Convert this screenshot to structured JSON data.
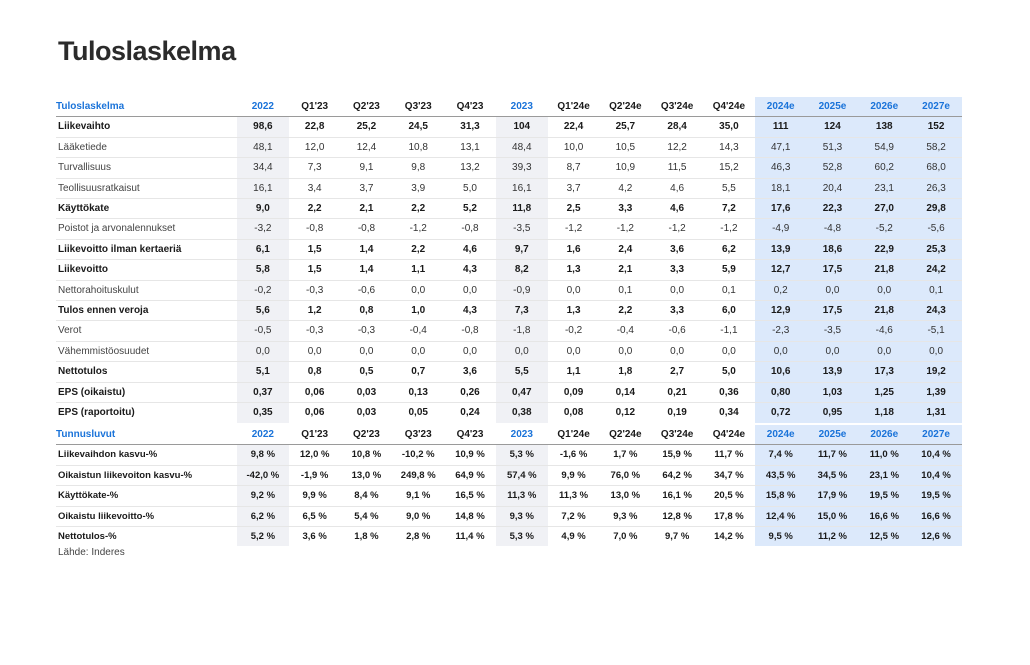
{
  "title": "Tuloslaskelma",
  "source": "Lähde: Inderes",
  "income": {
    "header": [
      "Tuloslaskelma",
      "2022",
      "Q1'23",
      "Q2'23",
      "Q3'23",
      "Q4'23",
      "2023",
      "Q1'24e",
      "Q2'24e",
      "Q3'24e",
      "Q4'24e",
      "2024e",
      "2025e",
      "2026e",
      "2027e"
    ],
    "rows": [
      {
        "bold": true,
        "cells": [
          "Liikevaihto",
          "98,6",
          "22,8",
          "25,2",
          "24,5",
          "31,3",
          "104",
          "22,4",
          "25,7",
          "28,4",
          "35,0",
          "111",
          "124",
          "138",
          "152"
        ]
      },
      {
        "bold": false,
        "cells": [
          "Lääketiede",
          "48,1",
          "12,0",
          "12,4",
          "10,8",
          "13,1",
          "48,4",
          "10,0",
          "10,5",
          "12,2",
          "14,3",
          "47,1",
          "51,3",
          "54,9",
          "58,2"
        ]
      },
      {
        "bold": false,
        "cells": [
          "Turvallisuus",
          "34,4",
          "7,3",
          "9,1",
          "9,8",
          "13,2",
          "39,3",
          "8,7",
          "10,9",
          "11,5",
          "15,2",
          "46,3",
          "52,8",
          "60,2",
          "68,0"
        ]
      },
      {
        "bold": false,
        "cells": [
          "Teollisuusratkaisut",
          "16,1",
          "3,4",
          "3,7",
          "3,9",
          "5,0",
          "16,1",
          "3,7",
          "4,2",
          "4,6",
          "5,5",
          "18,1",
          "20,4",
          "23,1",
          "26,3"
        ]
      },
      {
        "bold": true,
        "cells": [
          "Käyttökate",
          "9,0",
          "2,2",
          "2,1",
          "2,2",
          "5,2",
          "11,8",
          "2,5",
          "3,3",
          "4,6",
          "7,2",
          "17,6",
          "22,3",
          "27,0",
          "29,8"
        ]
      },
      {
        "bold": false,
        "cells": [
          "Poistot ja arvonalennukset",
          "-3,2",
          "-0,8",
          "-0,8",
          "-1,2",
          "-0,8",
          "-3,5",
          "-1,2",
          "-1,2",
          "-1,2",
          "-1,2",
          "-4,9",
          "-4,8",
          "-5,2",
          "-5,6"
        ]
      },
      {
        "bold": true,
        "cells": [
          "Liikevoitto ilman kertaeriä",
          "6,1",
          "1,5",
          "1,4",
          "2,2",
          "4,6",
          "9,7",
          "1,6",
          "2,4",
          "3,6",
          "6,2",
          "13,9",
          "18,6",
          "22,9",
          "25,3"
        ]
      },
      {
        "bold": true,
        "cells": [
          "Liikevoitto",
          "5,8",
          "1,5",
          "1,4",
          "1,1",
          "4,3",
          "8,2",
          "1,3",
          "2,1",
          "3,3",
          "5,9",
          "12,7",
          "17,5",
          "21,8",
          "24,2"
        ]
      },
      {
        "bold": false,
        "cells": [
          "Nettorahoituskulut",
          "-0,2",
          "-0,3",
          "-0,6",
          "0,0",
          "0,0",
          "-0,9",
          "0,0",
          "0,1",
          "0,0",
          "0,1",
          "0,2",
          "0,0",
          "0,0",
          "0,1"
        ]
      },
      {
        "bold": true,
        "cells": [
          "Tulos ennen veroja",
          "5,6",
          "1,2",
          "0,8",
          "1,0",
          "4,3",
          "7,3",
          "1,3",
          "2,2",
          "3,3",
          "6,0",
          "12,9",
          "17,5",
          "21,8",
          "24,3"
        ]
      },
      {
        "bold": false,
        "cells": [
          "Verot",
          "-0,5",
          "-0,3",
          "-0,3",
          "-0,4",
          "-0,8",
          "-1,8",
          "-0,2",
          "-0,4",
          "-0,6",
          "-1,1",
          "-2,3",
          "-3,5",
          "-4,6",
          "-5,1"
        ]
      },
      {
        "bold": false,
        "cells": [
          "Vähemmistöosuudet",
          "0,0",
          "0,0",
          "0,0",
          "0,0",
          "0,0",
          "0,0",
          "0,0",
          "0,0",
          "0,0",
          "0,0",
          "0,0",
          "0,0",
          "0,0",
          "0,0"
        ]
      },
      {
        "bold": true,
        "cells": [
          "Nettotulos",
          "5,1",
          "0,8",
          "0,5",
          "0,7",
          "3,6",
          "5,5",
          "1,1",
          "1,8",
          "2,7",
          "5,0",
          "10,6",
          "13,9",
          "17,3",
          "19,2"
        ]
      },
      {
        "bold": true,
        "cells": [
          "EPS (oikaistu)",
          "0,37",
          "0,06",
          "0,03",
          "0,13",
          "0,26",
          "0,47",
          "0,09",
          "0,14",
          "0,21",
          "0,36",
          "0,80",
          "1,03",
          "1,25",
          "1,39"
        ]
      },
      {
        "bold": true,
        "cells": [
          "EPS (raportoitu)",
          "0,35",
          "0,06",
          "0,03",
          "0,05",
          "0,24",
          "0,38",
          "0,08",
          "0,12",
          "0,19",
          "0,34",
          "0,72",
          "0,95",
          "1,18",
          "1,31"
        ]
      }
    ]
  },
  "ratios": {
    "header": [
      "Tunnusluvut",
      "2022",
      "Q1'23",
      "Q2'23",
      "Q3'23",
      "Q4'23",
      "2023",
      "Q1'24e",
      "Q2'24e",
      "Q3'24e",
      "Q4'24e",
      "2024e",
      "2025e",
      "2026e",
      "2027e"
    ],
    "rows": [
      {
        "cells": [
          "Liikevaihdon kasvu-%",
          "9,8 %",
          "12,0 %",
          "10,8 %",
          "-10,2 %",
          "10,9 %",
          "5,3 %",
          "-1,6 %",
          "1,7 %",
          "15,9 %",
          "11,7 %",
          "7,4 %",
          "11,7 %",
          "11,0 %",
          "10,4 %"
        ]
      },
      {
        "cells": [
          "Oikaistun liikevoiton kasvu-%",
          "-42,0 %",
          "-1,9 %",
          "13,0 %",
          "249,8 %",
          "64,9 %",
          "57,4 %",
          "9,9 %",
          "76,0 %",
          "64,2 %",
          "34,7 %",
          "43,5 %",
          "34,5 %",
          "23,1 %",
          "10,4 %"
        ]
      },
      {
        "cells": [
          "Käyttökate-%",
          "9,2 %",
          "9,9 %",
          "8,4 %",
          "9,1 %",
          "16,5 %",
          "11,3 %",
          "11,3 %",
          "13,0 %",
          "16,1 %",
          "20,5 %",
          "15,8 %",
          "17,9 %",
          "19,5 %",
          "19,5 %"
        ]
      },
      {
        "cells": [
          "Oikaistu liikevoitto-%",
          "6,2 %",
          "6,5 %",
          "5,4 %",
          "9,0 %",
          "14,8 %",
          "9,3 %",
          "7,2 %",
          "9,3 %",
          "12,8 %",
          "17,8 %",
          "12,4 %",
          "15,0 %",
          "16,6 %",
          "16,6 %"
        ]
      },
      {
        "cells": [
          "Nettotulos-%",
          "5,2 %",
          "3,6 %",
          "1,8 %",
          "2,8 %",
          "11,4 %",
          "5,3 %",
          "4,9 %",
          "7,0 %",
          "9,7 %",
          "14,2 %",
          "9,5 %",
          "11,2 %",
          "12,5 %",
          "12,6 %"
        ]
      }
    ]
  }
}
